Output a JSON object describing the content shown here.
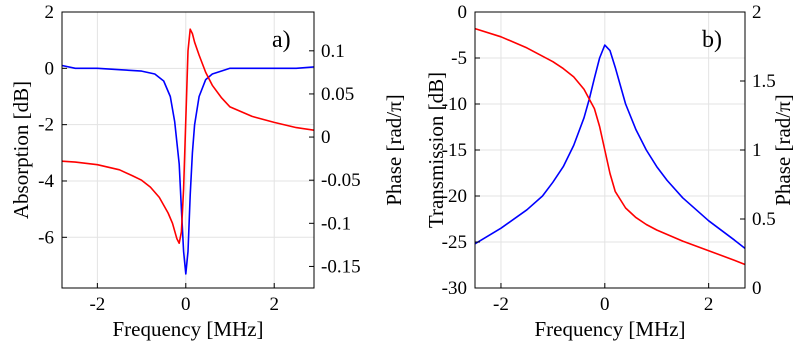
{
  "chart_data": [
    {
      "type": "line",
      "panel_label": "a)",
      "xlabel": "Frequency [MHz]",
      "ylabel": "Absorption [dB]",
      "ylabel_right": "Phase [rad/π]",
      "xlim": [
        -2.8,
        2.9
      ],
      "ylim": [
        -7.8,
        2
      ],
      "ylim_right": [
        -0.175,
        0.145
      ],
      "xticks": [
        -2,
        0,
        2
      ],
      "yticks": [
        -6,
        -4,
        -2,
        0,
        2
      ],
      "yticks_right": [
        -0.15,
        -0.1,
        -0.05,
        0,
        0.05,
        0.1
      ],
      "xtick_labels": [
        "-2",
        "0",
        "2"
      ],
      "ytick_labels": [
        "-6",
        "-4",
        "-2",
        "0",
        "2"
      ],
      "ytick_right_labels": [
        "-0.15",
        "-0.1",
        "-0.05",
        "0",
        "0.05",
        "0.1"
      ],
      "grid": true,
      "series": [
        {
          "axis": "left",
          "color": "#0000ff",
          "x": [
            -2.8,
            -2.5,
            -2.0,
            -1.5,
            -1.0,
            -0.7,
            -0.5,
            -0.35,
            -0.25,
            -0.15,
            -0.1,
            -0.05,
            0.0,
            0.05,
            0.1,
            0.15,
            0.2,
            0.3,
            0.45,
            0.6,
            0.8,
            1.0,
            1.5,
            2.0,
            2.5,
            2.9
          ],
          "y": [
            0.1,
            0.0,
            0.0,
            -0.05,
            -0.1,
            -0.2,
            -0.45,
            -1.0,
            -1.9,
            -3.4,
            -5.0,
            -6.5,
            -7.3,
            -6.5,
            -4.5,
            -3.0,
            -2.0,
            -1.0,
            -0.4,
            -0.2,
            -0.1,
            0.0,
            0.0,
            0.0,
            0.0,
            0.05
          ]
        },
        {
          "axis": "right",
          "color": "#ff0000",
          "x": [
            -2.8,
            -2.5,
            -2.0,
            -1.5,
            -1.2,
            -1.0,
            -0.8,
            -0.6,
            -0.4,
            -0.3,
            -0.2,
            -0.15,
            -0.1,
            -0.05,
            0.0,
            0.05,
            0.1,
            0.15,
            0.2,
            0.3,
            0.45,
            0.6,
            0.8,
            1.0,
            1.5,
            2.0,
            2.5,
            2.9
          ],
          "y": [
            -0.028,
            -0.029,
            -0.032,
            -0.038,
            -0.045,
            -0.05,
            -0.058,
            -0.07,
            -0.088,
            -0.1,
            -0.118,
            -0.123,
            -0.11,
            -0.06,
            0.02,
            0.1,
            0.125,
            0.12,
            0.11,
            0.095,
            0.075,
            0.06,
            0.046,
            0.035,
            0.024,
            0.017,
            0.011,
            0.008
          ]
        }
      ]
    },
    {
      "type": "line",
      "panel_label": "b)",
      "xlabel": "Frequency [MHz]",
      "ylabel": "Transmission [dB]",
      "ylabel_right": "Phase [rad/π]",
      "xlim": [
        -2.5,
        2.7
      ],
      "ylim": [
        -30,
        0
      ],
      "ylim_right": [
        0,
        2
      ],
      "xticks": [
        -2,
        0,
        2
      ],
      "yticks": [
        -30,
        -25,
        -20,
        -15,
        -10,
        -5,
        0
      ],
      "yticks_right": [
        0,
        0.5,
        1,
        1.5,
        2
      ],
      "xtick_labels": [
        "-2",
        "0",
        "2"
      ],
      "ytick_labels": [
        "-30",
        "-25",
        "-20",
        "-15",
        "-10",
        "-5",
        "0"
      ],
      "ytick_right_labels": [
        "0",
        "0.5",
        "1",
        "1.5",
        "2"
      ],
      "grid": true,
      "series": [
        {
          "axis": "left",
          "color": "#0000ff",
          "x": [
            -2.5,
            -2.0,
            -1.5,
            -1.2,
            -1.0,
            -0.8,
            -0.6,
            -0.4,
            -0.3,
            -0.2,
            -0.1,
            0.0,
            0.1,
            0.2,
            0.3,
            0.4,
            0.6,
            0.8,
            1.0,
            1.2,
            1.5,
            2.0,
            2.5,
            2.7
          ],
          "y": [
            -25.2,
            -23.5,
            -21.5,
            -20.0,
            -18.5,
            -16.8,
            -14.5,
            -11.5,
            -9.5,
            -7.2,
            -5.0,
            -3.6,
            -4.2,
            -6.0,
            -8.0,
            -10.0,
            -12.8,
            -15.0,
            -16.8,
            -18.3,
            -20.2,
            -22.7,
            -24.8,
            -25.7
          ]
        },
        {
          "axis": "right",
          "color": "#ff0000",
          "x": [
            -2.5,
            -2.0,
            -1.5,
            -1.0,
            -0.8,
            -0.6,
            -0.4,
            -0.2,
            -0.1,
            0.0,
            0.1,
            0.2,
            0.4,
            0.6,
            0.8,
            1.0,
            1.5,
            2.0,
            2.5,
            2.7
          ],
          "y": [
            1.88,
            1.82,
            1.74,
            1.64,
            1.59,
            1.53,
            1.44,
            1.3,
            1.17,
            1.0,
            0.83,
            0.7,
            0.58,
            0.51,
            0.46,
            0.42,
            0.34,
            0.27,
            0.2,
            0.17
          ]
        }
      ]
    }
  ]
}
